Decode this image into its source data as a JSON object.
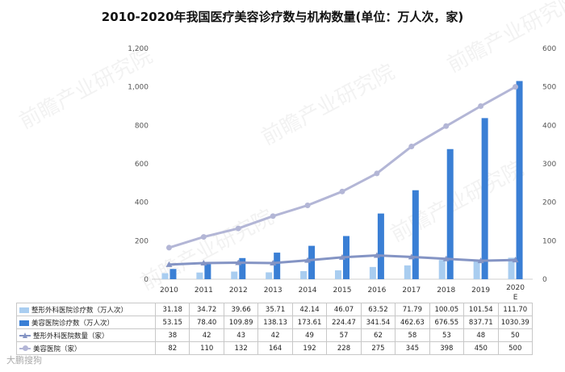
{
  "chart_data": {
    "type": "bar",
    "title": "2010-2020年我国医疗美容诊疗数与机构数量(单位：万人次，家)",
    "categories": [
      "2010",
      "2011",
      "2012",
      "2013",
      "2014",
      "2015",
      "2016",
      "2017",
      "2018",
      "2019",
      "2020E"
    ],
    "y_left": {
      "range": [
        0,
        1200
      ],
      "ticks": [
        "0",
        "200",
        "400",
        "600",
        "800",
        "1,000",
        "1,200"
      ]
    },
    "y_right": {
      "range": [
        0,
        600
      ],
      "ticks": [
        "0",
        "100",
        "200",
        "300",
        "400",
        "500",
        "600"
      ]
    },
    "series": [
      {
        "name": "整形外科医院诊疗数（万人次）",
        "type": "bar",
        "axis": "left",
        "color": "#a9cdf0",
        "values": [
          31.18,
          34.72,
          39.66,
          35.71,
          42.14,
          46.07,
          63.52,
          71.79,
          100.05,
          101.54,
          111.7
        ],
        "labels": [
          "31.18",
          "34.72",
          "39.66",
          "35.71",
          "42.14",
          "46.07",
          "63.52",
          "71.79",
          "100.05",
          "101.54",
          "111.70"
        ]
      },
      {
        "name": "美容医院诊疗数（万人次）",
        "type": "bar",
        "axis": "left",
        "color": "#3a7fd5",
        "values": [
          53.15,
          78.4,
          109.89,
          138.13,
          173.61,
          224.47,
          341.54,
          462.63,
          676.55,
          837.71,
          1030.39
        ],
        "labels": [
          "53.15",
          "78.40",
          "109.89",
          "138.13",
          "173.61",
          "224.47",
          "341.54",
          "462.63",
          "676.55",
          "837.71",
          "1030.39"
        ]
      },
      {
        "name": "整形外科医院数量（家）",
        "type": "line",
        "marker": "triangle",
        "axis": "right",
        "color": "#8494c4",
        "values": [
          38,
          42,
          43,
          42,
          49,
          57,
          62,
          58,
          53,
          48,
          50
        ],
        "labels": [
          "38",
          "42",
          "43",
          "42",
          "49",
          "57",
          "62",
          "58",
          "53",
          "48",
          "50"
        ]
      },
      {
        "name": "美容医院（家）",
        "type": "line",
        "marker": "circle",
        "axis": "right",
        "color": "#b3b6d6",
        "values": [
          82,
          110,
          132,
          164,
          192,
          228,
          275,
          345,
          398,
          450,
          500
        ],
        "labels": [
          "82",
          "110",
          "132",
          "164",
          "192",
          "228",
          "275",
          "345",
          "398",
          "450",
          "500"
        ]
      }
    ]
  },
  "watermark": {
    "text": "前瞻产业研究院",
    "footer_text": "大鹏搜狗"
  }
}
